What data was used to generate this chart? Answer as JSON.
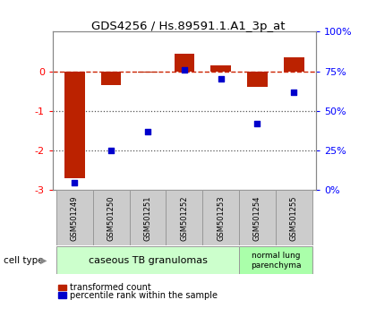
{
  "title": "GDS4256 / Hs.89591.1.A1_3p_at",
  "samples": [
    "GSM501249",
    "GSM501250",
    "GSM501251",
    "GSM501252",
    "GSM501253",
    "GSM501254",
    "GSM501255"
  ],
  "transformed_count": [
    -2.7,
    -0.35,
    -0.02,
    0.45,
    0.15,
    -0.4,
    0.35
  ],
  "percentile_rank": [
    5,
    25,
    37,
    76,
    70,
    42,
    62
  ],
  "ylim_left": [
    -3,
    1
  ],
  "ylim_right": [
    0,
    100
  ],
  "yticks_left": [
    -3,
    -2,
    -1,
    0
  ],
  "yticks_right": [
    0,
    25,
    50,
    75,
    100
  ],
  "ytick_labels_right": [
    "0%",
    "25%",
    "50%",
    "75%",
    "100%"
  ],
  "bar_color": "#bb2200",
  "dot_color": "#0000cc",
  "dashed_line_color": "#cc2200",
  "dotted_line_color": "#555555",
  "group1_label": "caseous TB granulomas",
  "group2_label": "normal lung\nparenchyma",
  "cell_type_label": "cell type",
  "legend1": "transformed count",
  "legend2": "percentile rank within the sample",
  "group1_color": "#ccffcc",
  "group2_color": "#aaffaa",
  "tick_area_color": "#cccccc",
  "bar_width": 0.55,
  "figsize": [
    4.2,
    3.54
  ],
  "dpi": 100
}
